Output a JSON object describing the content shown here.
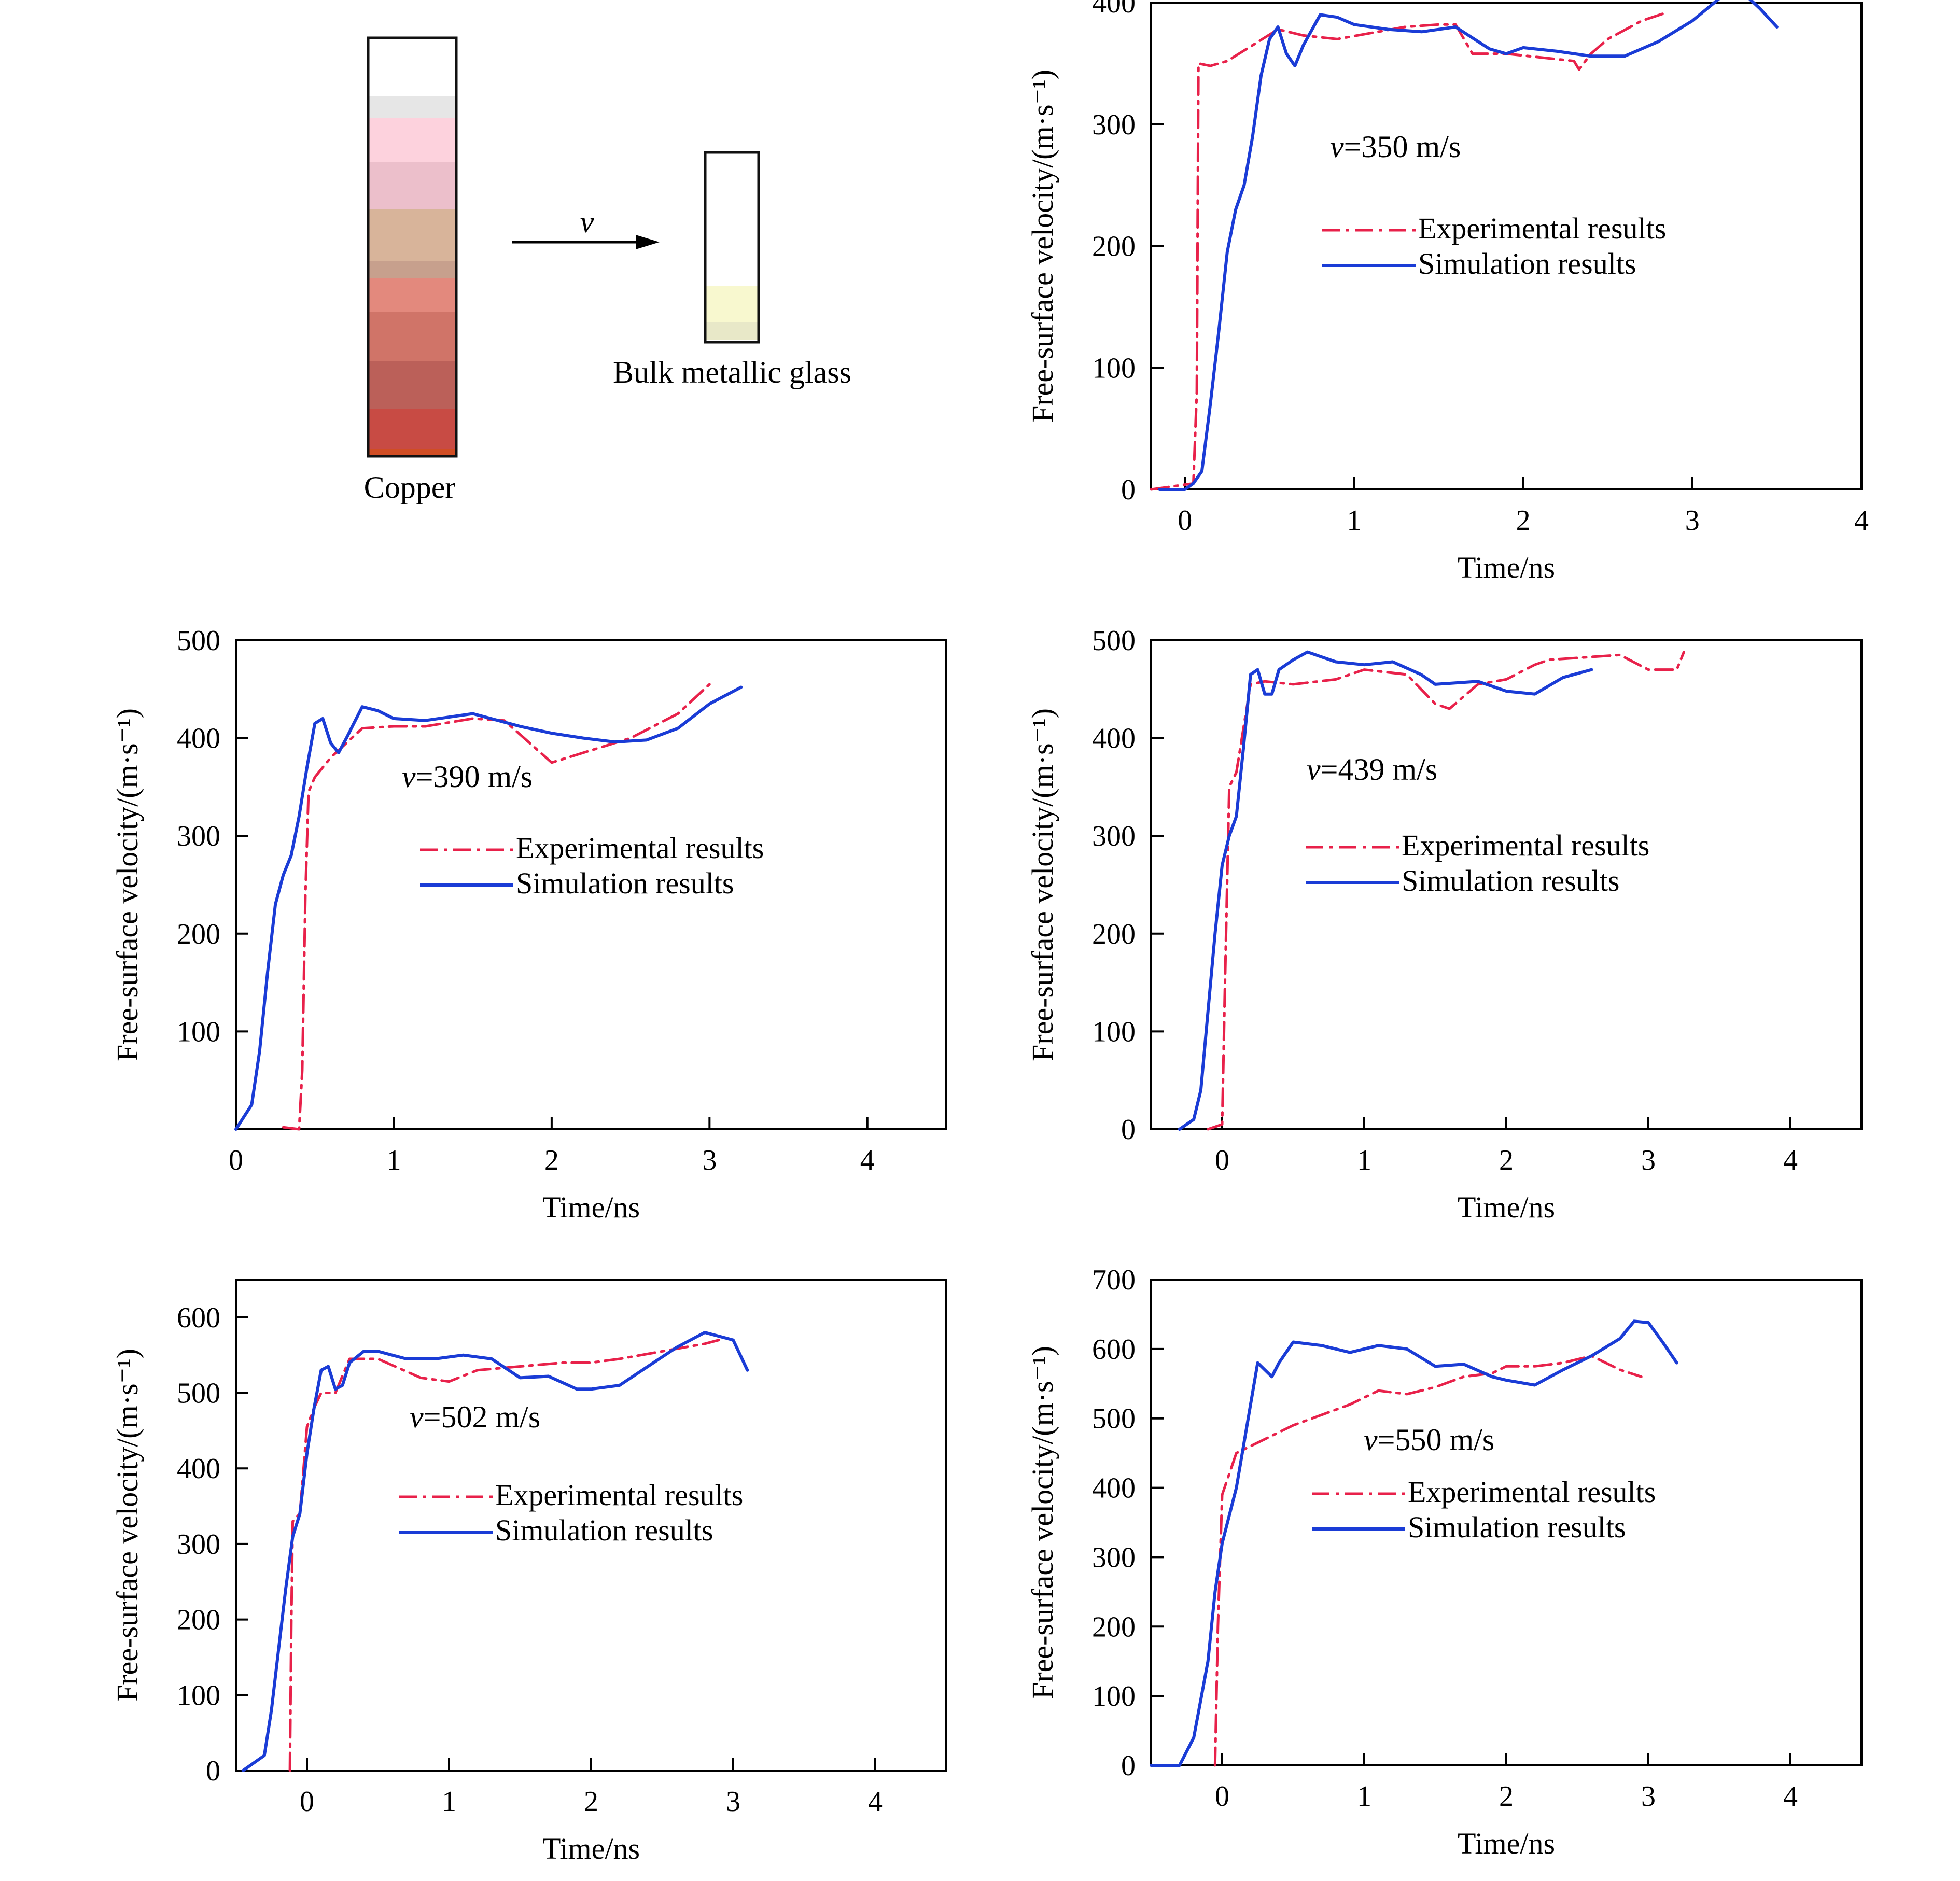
{
  "schematic": {
    "projectile_label": "Copper",
    "target_label": "Bulk metallic glass",
    "velocity_symbol": "v",
    "projectile_colors": [
      "#ffffff",
      "#e6e6e6",
      "#fdd2dd",
      "#ecbfcb",
      "#d8b49a",
      "#c7a08d",
      "#e3897d",
      "#d07468",
      "#bb6059",
      "#c84b44",
      "#d04d24"
    ],
    "target_colors": [
      "#ffffff",
      "#f8f8cf",
      "#e8e8c8"
    ]
  },
  "colors": {
    "experimental": "#e8214a",
    "simulation": "#1a3cd6",
    "axis": "#000000"
  },
  "chart_data": [
    {
      "type": "line",
      "annotation_prefix": "v",
      "annotation_value": "=350 m/s",
      "xlabel": "Time/ns",
      "ylabel": "Free-surface velocity/(m·s⁻¹)",
      "xlim": [
        -0.2,
        4
      ],
      "ylim": [
        0,
        400
      ],
      "xticks": [
        0,
        1,
        2,
        3,
        4
      ],
      "yticks": [
        0,
        100,
        200,
        300,
        400
      ],
      "legend_position": "center-right",
      "series": [
        {
          "name": "Experimental results",
          "style": "dash-dot",
          "x": [
            -0.2,
            0.05,
            0.07,
            0.08,
            0.15,
            0.25,
            0.4,
            0.55,
            0.7,
            0.9,
            1.1,
            1.3,
            1.5,
            1.6,
            1.7,
            1.9,
            2.1,
            2.3,
            2.33,
            2.4,
            2.5,
            2.7,
            2.85
          ],
          "y": [
            0,
            5,
            80,
            350,
            348,
            352,
            365,
            378,
            373,
            370,
            375,
            380,
            382,
            382,
            358,
            358,
            355,
            352,
            345,
            358,
            370,
            385,
            392
          ]
        },
        {
          "name": "Simulation results",
          "x": [
            -0.15,
            0.0,
            0.05,
            0.1,
            0.15,
            0.2,
            0.25,
            0.3,
            0.35,
            0.4,
            0.45,
            0.5,
            0.55,
            0.6,
            0.65,
            0.7,
            0.8,
            0.9,
            1.0,
            1.2,
            1.4,
            1.6,
            1.8,
            1.9,
            2.0,
            2.2,
            2.4,
            2.6,
            2.8,
            3.0,
            3.2,
            3.3,
            3.4,
            3.5
          ],
          "y": [
            0,
            0,
            5,
            15,
            70,
            130,
            195,
            230,
            250,
            290,
            340,
            370,
            380,
            358,
            348,
            365,
            390,
            388,
            382,
            378,
            376,
            380,
            362,
            358,
            363,
            360,
            356,
            356,
            368,
            385,
            408,
            408,
            395,
            380
          ]
        }
      ]
    },
    {
      "type": "line",
      "annotation_prefix": "v",
      "annotation_value": "=390 m/s",
      "xlabel": "Time/ns",
      "ylabel": "Free-surface velocity/(m·s⁻¹)",
      "xlim": [
        0,
        4.5
      ],
      "ylim": [
        0,
        500
      ],
      "xticks": [
        0,
        1,
        2,
        3,
        4
      ],
      "yticks": [
        100,
        200,
        300,
        400,
        500
      ],
      "xtick_labels": [
        "0",
        "1",
        "2",
        "3",
        "4"
      ],
      "legend_position": "center",
      "series": [
        {
          "name": "Experimental results",
          "style": "dash-dot",
          "x": [
            0.3,
            0.4,
            0.42,
            0.44,
            0.46,
            0.5,
            0.6,
            0.8,
            1.0,
            1.2,
            1.5,
            1.7,
            2.0,
            2.2,
            2.5,
            2.8,
            3.0
          ],
          "y": [
            2,
            0,
            60,
            240,
            345,
            360,
            380,
            410,
            412,
            412,
            420,
            418,
            375,
            385,
            400,
            425,
            455
          ]
        },
        {
          "name": "Simulation results",
          "x": [
            0.0,
            0.1,
            0.15,
            0.2,
            0.25,
            0.3,
            0.35,
            0.4,
            0.45,
            0.5,
            0.55,
            0.6,
            0.65,
            0.7,
            0.8,
            0.9,
            1.0,
            1.2,
            1.5,
            1.8,
            2.0,
            2.2,
            2.4,
            2.6,
            2.8,
            3.0,
            3.2
          ],
          "y": [
            0,
            25,
            80,
            160,
            230,
            260,
            280,
            320,
            370,
            415,
            420,
            395,
            385,
            400,
            432,
            428,
            420,
            418,
            425,
            412,
            405,
            400,
            396,
            398,
            410,
            435,
            452
          ]
        }
      ]
    },
    {
      "type": "line",
      "annotation_prefix": "v",
      "annotation_value": "=439 m/s",
      "xlabel": "Time/ns",
      "ylabel": "Free-surface velocity/(m·s⁻¹)",
      "xlim": [
        -0.5,
        4.5
      ],
      "ylim": [
        0,
        500
      ],
      "xticks": [
        0,
        1,
        2,
        3,
        4
      ],
      "yticks": [
        0,
        100,
        200,
        300,
        400,
        500
      ],
      "legend_position": "center-right",
      "series": [
        {
          "name": "Experimental results",
          "style": "dash-dot",
          "x": [
            -0.1,
            0.0,
            0.02,
            0.05,
            0.1,
            0.2,
            0.3,
            0.5,
            0.8,
            1.0,
            1.3,
            1.5,
            1.6,
            1.8,
            2.0,
            2.2,
            2.3,
            2.5,
            2.8,
            3.0,
            3.2,
            3.25
          ],
          "y": [
            0,
            5,
            150,
            350,
            365,
            455,
            458,
            455,
            460,
            470,
            465,
            435,
            430,
            455,
            460,
            475,
            480,
            482,
            485,
            470,
            470,
            488
          ]
        },
        {
          "name": "Simulation results",
          "x": [
            -0.3,
            -0.2,
            -0.15,
            -0.1,
            -0.05,
            0.0,
            0.05,
            0.1,
            0.15,
            0.2,
            0.25,
            0.3,
            0.35,
            0.4,
            0.5,
            0.6,
            0.8,
            1.0,
            1.2,
            1.4,
            1.5,
            1.8,
            2.0,
            2.2,
            2.4,
            2.6
          ],
          "y": [
            0,
            10,
            40,
            120,
            200,
            270,
            300,
            320,
            390,
            465,
            470,
            445,
            445,
            470,
            480,
            488,
            478,
            475,
            478,
            465,
            455,
            458,
            448,
            445,
            462,
            470
          ]
        }
      ]
    },
    {
      "type": "line",
      "annotation_prefix": "v",
      "annotation_value": "=502 m/s",
      "xlabel": "Time/ns",
      "ylabel": "Free-surface velocity/(m·s⁻¹)",
      "xlim": [
        -0.5,
        4.5
      ],
      "ylim": [
        0,
        650
      ],
      "xticks": [
        0,
        1,
        2,
        3,
        4
      ],
      "yticks": [
        0,
        100,
        200,
        300,
        400,
        500,
        600
      ],
      "legend_position": "center",
      "series": [
        {
          "name": "Experimental results",
          "style": "dash-dot",
          "x": [
            -0.12,
            -0.11,
            -0.1,
            -0.05,
            0.0,
            0.05,
            0.1,
            0.2,
            0.3,
            0.5,
            0.8,
            1.0,
            1.2,
            1.5,
            1.8,
            2.0,
            2.2,
            2.5,
            2.8,
            2.9
          ],
          "y": [
            0,
            200,
            330,
            340,
            455,
            480,
            500,
            500,
            545,
            545,
            520,
            515,
            530,
            535,
            540,
            540,
            545,
            555,
            565,
            570
          ]
        },
        {
          "name": "Simulation results",
          "x": [
            -0.45,
            -0.3,
            -0.25,
            -0.2,
            -0.15,
            -0.1,
            -0.05,
            0.0,
            0.05,
            0.1,
            0.15,
            0.2,
            0.25,
            0.3,
            0.4,
            0.5,
            0.7,
            0.9,
            1.1,
            1.3,
            1.5,
            1.7,
            1.9,
            2.0,
            2.2,
            2.4,
            2.6,
            2.8,
            3.0,
            3.1
          ],
          "y": [
            0,
            20,
            80,
            160,
            240,
            310,
            340,
            420,
            480,
            530,
            535,
            505,
            510,
            540,
            555,
            555,
            545,
            545,
            550,
            545,
            520,
            522,
            505,
            505,
            510,
            535,
            560,
            580,
            570,
            530
          ]
        }
      ]
    },
    {
      "type": "line",
      "annotation_prefix": "v",
      "annotation_value": "=550 m/s",
      "xlabel": "Time/ns",
      "ylabel": "Free-surface velocity/(m·s⁻¹)",
      "xlim": [
        -0.5,
        4.5
      ],
      "ylim": [
        0,
        700
      ],
      "xticks": [
        0,
        1,
        2,
        3,
        4
      ],
      "yticks": [
        0,
        100,
        200,
        300,
        400,
        500,
        600,
        700
      ],
      "legend_position": "center-right",
      "series": [
        {
          "name": "Experimental results",
          "style": "dash-dot",
          "x": [
            -0.05,
            -0.03,
            0.0,
            0.05,
            0.1,
            0.2,
            0.3,
            0.5,
            0.7,
            0.9,
            1.1,
            1.3,
            1.5,
            1.7,
            1.9,
            2.0,
            2.2,
            2.4,
            2.6,
            2.8,
            2.95
          ],
          "y": [
            0,
            200,
            390,
            420,
            450,
            460,
            470,
            490,
            505,
            520,
            540,
            535,
            545,
            560,
            565,
            575,
            575,
            580,
            590,
            570,
            560
          ]
        },
        {
          "name": "Simulation results",
          "x": [
            -0.5,
            -0.3,
            -0.2,
            -0.1,
            -0.05,
            0.0,
            0.05,
            0.1,
            0.2,
            0.25,
            0.3,
            0.35,
            0.4,
            0.5,
            0.7,
            0.9,
            1.1,
            1.3,
            1.5,
            1.7,
            1.9,
            2.0,
            2.2,
            2.4,
            2.6,
            2.8,
            2.9,
            3.0,
            3.1,
            3.2
          ],
          "y": [
            0,
            0,
            40,
            150,
            250,
            320,
            360,
            400,
            520,
            580,
            570,
            560,
            580,
            610,
            605,
            595,
            605,
            600,
            575,
            578,
            560,
            555,
            548,
            570,
            590,
            615,
            640,
            638,
            610,
            580
          ]
        }
      ]
    }
  ]
}
